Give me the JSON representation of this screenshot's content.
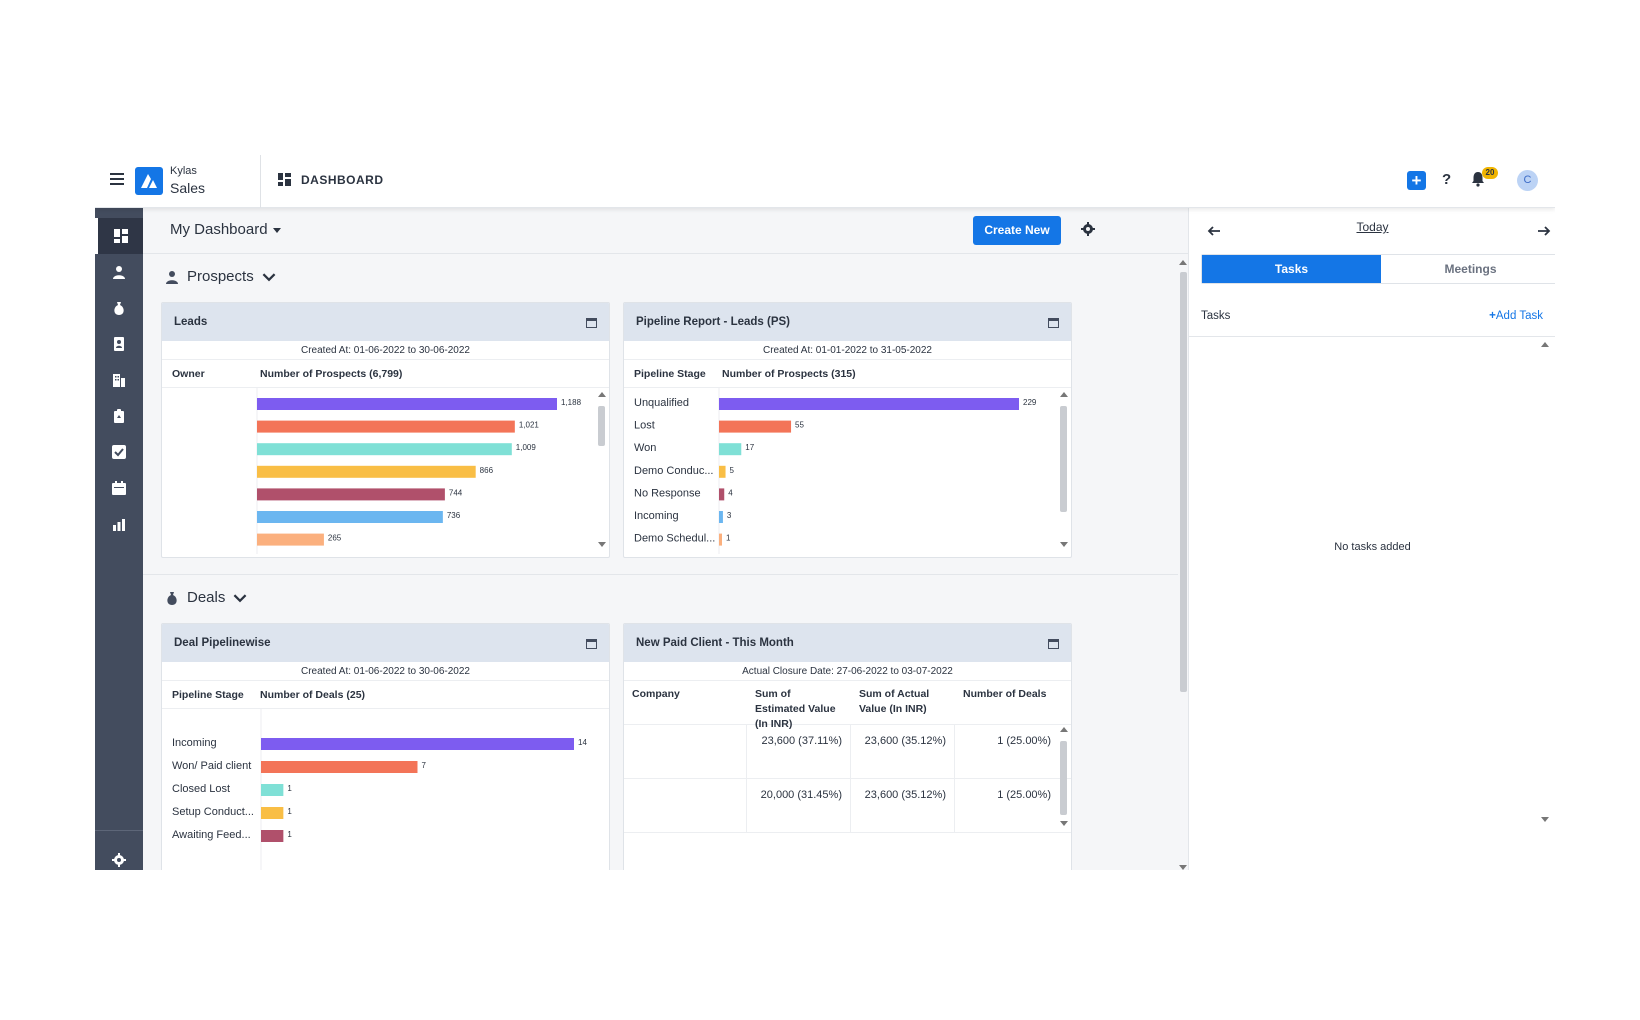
{
  "topbar": {
    "brand_top": "Kylas",
    "brand_bottom": "Sales",
    "page_title": "DASHBOARD",
    "help_label": "?",
    "notification_count": "20",
    "avatar_initial": "C"
  },
  "main": {
    "dashboard_select": "My Dashboard",
    "create_new_label": "Create New"
  },
  "sections": {
    "prospects": "Prospects",
    "deals": "Deals"
  },
  "cards": {
    "leads": {
      "title": "Leads",
      "subtitle": "Created At: 01-06-2022 to 30-06-2022",
      "col1": "Owner",
      "col2": "Number of Prospects (6,799)"
    },
    "pipeline": {
      "title": "Pipeline Report - Leads (PS)",
      "subtitle": "Created At: 01-01-2022 to 31-05-2022",
      "col1": "Pipeline Stage",
      "col2": "Number of Prospects (315)"
    },
    "deal_pipeline": {
      "title": "Deal Pipelinewise",
      "subtitle": "Created At: 01-06-2022 to 30-06-2022",
      "col1": "Pipeline Stage",
      "col2": "Number of Deals (25)"
    },
    "paid_client": {
      "title": "New Paid Client - This Month",
      "subtitle": "Actual Closure Date: 27-06-2022 to 03-07-2022",
      "columns": [
        "Company",
        "Sum of Estimated Value (In INR)",
        "Sum of Actual Value (In INR)",
        "Number of Deals"
      ],
      "rows": [
        {
          "company": "",
          "estimated": "23,600 (37.11%)",
          "actual": "23,600 (35.12%)",
          "deals": "1 (25.00%)"
        },
        {
          "company": "",
          "estimated": "20,000 (31.45%)",
          "actual": "23,600 (35.12%)",
          "deals": "1 (25.00%)"
        }
      ]
    }
  },
  "chart_data": [
    {
      "type": "bar",
      "orientation": "horizontal",
      "title": "Leads",
      "categories": [
        "",
        "",
        "",
        "",
        "",
        "",
        ""
      ],
      "values": [
        1188,
        1021,
        1009,
        866,
        744,
        736,
        265
      ],
      "value_labels": [
        "1,188",
        "1,021",
        "1,009",
        "866",
        "744",
        "736",
        "265"
      ],
      "colors": [
        "#7d5cf0",
        "#f37458",
        "#7fe0d6",
        "#f9be45",
        "#b0506b",
        "#6bb6f0",
        "#fbb07e"
      ]
    },
    {
      "type": "bar",
      "orientation": "horizontal",
      "title": "Pipeline Report - Leads (PS)",
      "categories": [
        "Unqualified",
        "Lost",
        "Won",
        "Demo Conduc...",
        "No Response",
        "Incoming",
        "Demo Schedul..."
      ],
      "values": [
        229,
        55,
        17,
        5,
        4,
        3,
        1
      ],
      "colors": [
        "#7d5cf0",
        "#f37458",
        "#7fe0d6",
        "#f9be45",
        "#b0506b",
        "#6bb6f0",
        "#fbb07e"
      ]
    },
    {
      "type": "bar",
      "orientation": "horizontal",
      "title": "Deal Pipelinewise",
      "categories": [
        "Incoming",
        "Won/ Paid client",
        "Closed Lost",
        "Setup Conduct...",
        "Awaiting Feed..."
      ],
      "values": [
        14,
        7,
        1,
        1,
        1
      ],
      "colors": [
        "#7d5cf0",
        "#f37458",
        "#7fe0d6",
        "#f9be45",
        "#b0506b"
      ]
    }
  ],
  "rpanel": {
    "today_label": "Today",
    "tab_tasks": "Tasks",
    "tab_meetings": "Meetings",
    "tasks_label": "Tasks",
    "add_task_label": "Add Task",
    "empty_message": "No tasks added"
  },
  "colors": {
    "accent": "#1476e6",
    "sidebar": "#434c5e",
    "card_header": "#dde4ee"
  }
}
